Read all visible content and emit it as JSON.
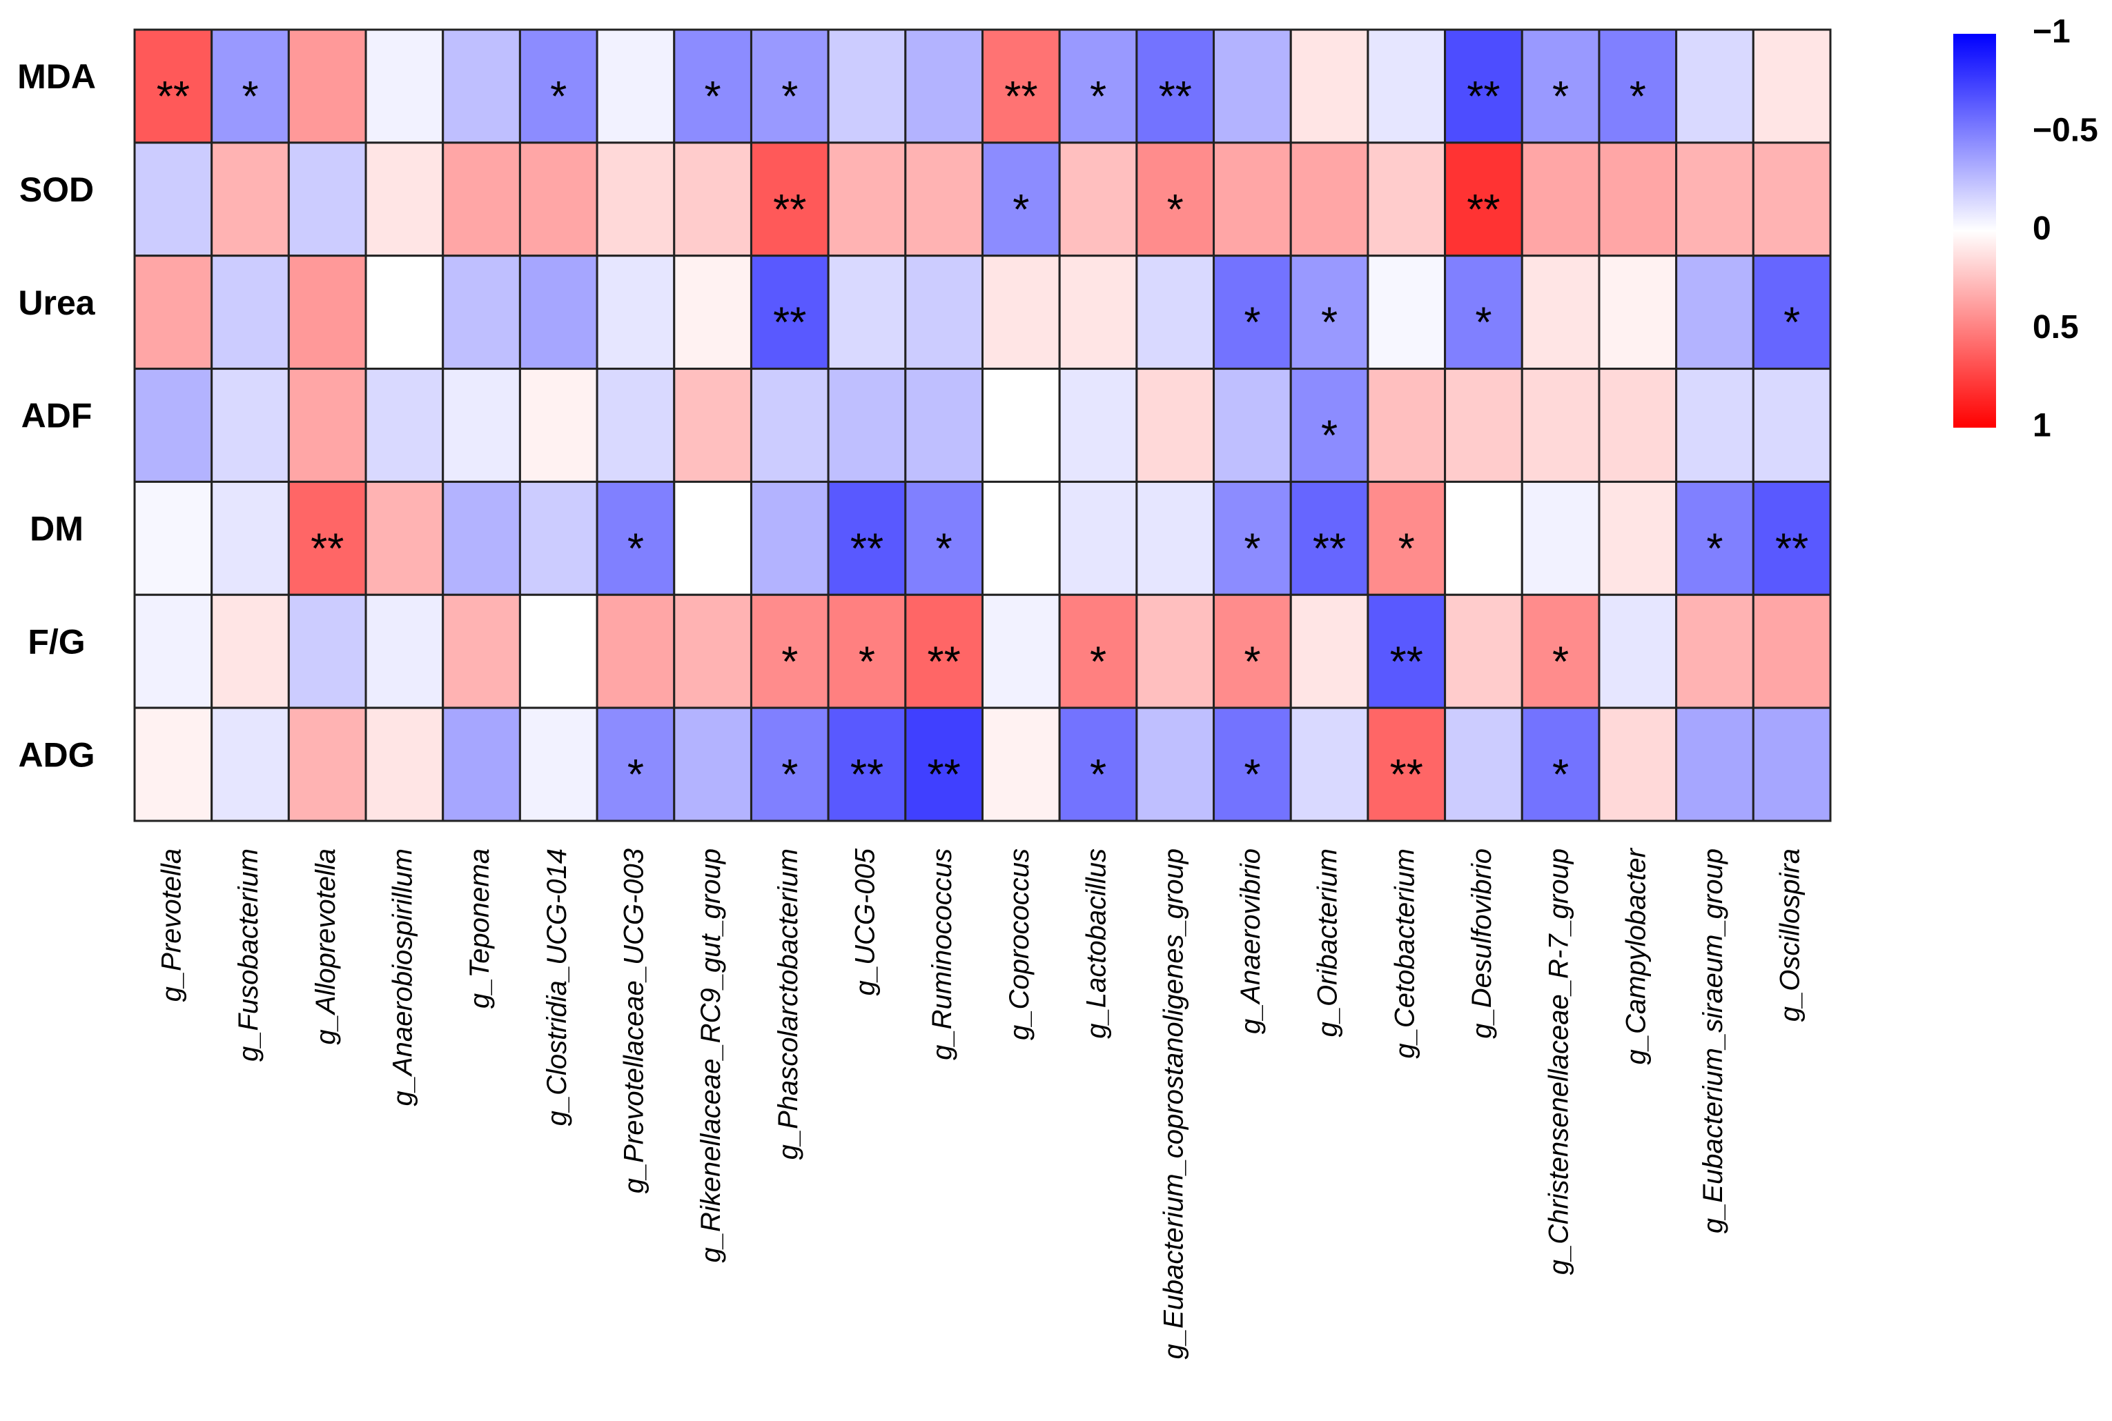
{
  "chart_data": {
    "type": "heatmap",
    "x_categories": [
      "g_Prevotella",
      "g_Fusobacterium",
      "g_Alloprevotella",
      "g_Anaerobiospirillum",
      "g_Teponema",
      "g_Clostridia_UCG-014",
      "g_Prevotellaceae_UCG-003",
      "g_Rikenellaceae_RC9_gut_group",
      "g_Phascolarctobacterium",
      "g_UCG-005",
      "g_Ruminococcus",
      "g_Coprococcus",
      "g_Lactobacillus",
      "g_Eubacterium_coprostanoligenes_group",
      "g_Anaerovibrio",
      "g_Oribacterium",
      "g_Cetobacterium",
      "g_Desulfovibrio",
      "g_Christensenellaceae_R-7_group",
      "g_Campylobacter",
      "g_Eubacterium_siraeum_group",
      "g_Oscillospira"
    ],
    "y_categories": [
      "MDA",
      "SOD",
      "Urea",
      "ADF",
      "DM",
      "F/G",
      "ADG"
    ],
    "values": [
      [
        0.65,
        -0.4,
        0.4,
        -0.05,
        -0.25,
        -0.45,
        -0.05,
        -0.45,
        -0.4,
        -0.2,
        -0.3,
        0.55,
        -0.4,
        -0.55,
        -0.3,
        0.1,
        -0.1,
        -0.7,
        -0.4,
        -0.5,
        -0.15,
        0.1
      ],
      [
        -0.2,
        0.3,
        -0.2,
        0.1,
        0.35,
        0.35,
        0.15,
        0.2,
        0.65,
        0.3,
        0.3,
        -0.45,
        0.25,
        0.45,
        0.35,
        0.35,
        0.2,
        0.8,
        0.35,
        0.35,
        0.3,
        0.3
      ],
      [
        0.35,
        -0.2,
        0.4,
        0,
        -0.25,
        -0.35,
        -0.1,
        0.05,
        -0.65,
        -0.15,
        -0.2,
        0.1,
        0.1,
        -0.15,
        -0.55,
        -0.4,
        -0.03,
        -0.5,
        0.1,
        0.05,
        -0.3,
        -0.6
      ],
      [
        -0.3,
        -0.15,
        0.35,
        -0.15,
        -0.08,
        0.05,
        -0.15,
        0.25,
        -0.2,
        -0.25,
        -0.25,
        0,
        -0.1,
        0.15,
        -0.25,
        -0.45,
        0.25,
        0.2,
        0.15,
        0.15,
        -0.15,
        -0.15
      ],
      [
        -0.03,
        -0.1,
        0.6,
        0.3,
        -0.3,
        -0.2,
        -0.5,
        0,
        -0.3,
        -0.65,
        -0.5,
        0,
        -0.1,
        -0.1,
        -0.45,
        -0.6,
        0.45,
        0,
        -0.05,
        0.1,
        -0.5,
        -0.65
      ],
      [
        -0.05,
        0.1,
        -0.2,
        -0.07,
        0.3,
        0,
        0.35,
        0.3,
        0.45,
        0.5,
        0.6,
        -0.05,
        0.5,
        0.25,
        0.45,
        0.1,
        -0.65,
        0.2,
        0.45,
        -0.1,
        0.3,
        0.35
      ],
      [
        0.05,
        -0.1,
        0.3,
        0.1,
        -0.35,
        -0.05,
        -0.45,
        -0.3,
        -0.5,
        -0.65,
        -0.75,
        0.05,
        -0.55,
        -0.25,
        -0.55,
        -0.15,
        0.6,
        -0.2,
        -0.55,
        0.15,
        -0.35,
        -0.35
      ]
    ],
    "significance": [
      [
        "**",
        "*",
        null,
        null,
        null,
        "*",
        null,
        "*",
        "*",
        null,
        null,
        "**",
        "*",
        "**",
        null,
        null,
        null,
        "**",
        "*",
        "*",
        null,
        null
      ],
      [
        null,
        null,
        null,
        null,
        null,
        null,
        null,
        null,
        "**",
        null,
        null,
        "*",
        null,
        "*",
        null,
        null,
        null,
        "**",
        null,
        null,
        null,
        null
      ],
      [
        null,
        null,
        null,
        null,
        null,
        null,
        null,
        null,
        "**",
        null,
        null,
        null,
        null,
        null,
        "*",
        "*",
        null,
        "*",
        null,
        null,
        null,
        "*"
      ],
      [
        null,
        null,
        null,
        null,
        null,
        null,
        null,
        null,
        null,
        null,
        null,
        null,
        null,
        null,
        null,
        "*",
        null,
        null,
        null,
        null,
        null,
        null
      ],
      [
        null,
        null,
        "**",
        null,
        null,
        null,
        "*",
        null,
        null,
        "**",
        "*",
        null,
        null,
        null,
        "*",
        "**",
        "*",
        null,
        null,
        null,
        "*",
        "**"
      ],
      [
        null,
        null,
        null,
        null,
        null,
        null,
        null,
        null,
        "*",
        "*",
        "**",
        null,
        "*",
        null,
        "*",
        null,
        "**",
        null,
        "*",
        null,
        null,
        null
      ],
      [
        null,
        null,
        null,
        null,
        null,
        null,
        "*",
        null,
        "*",
        "**",
        "**",
        null,
        "*",
        null,
        "*",
        null,
        "**",
        null,
        "*",
        null,
        null,
        null
      ]
    ],
    "colors": [
      "#0000ff",
      "#ffffff",
      "#ff0000"
    ],
    "zlim": [
      -1,
      1
    ],
    "zticks": [
      {
        "value": -1,
        "label": "−1"
      },
      {
        "value": -0.5,
        "label": "−0.5"
      },
      0,
      0.5,
      1
    ]
  }
}
